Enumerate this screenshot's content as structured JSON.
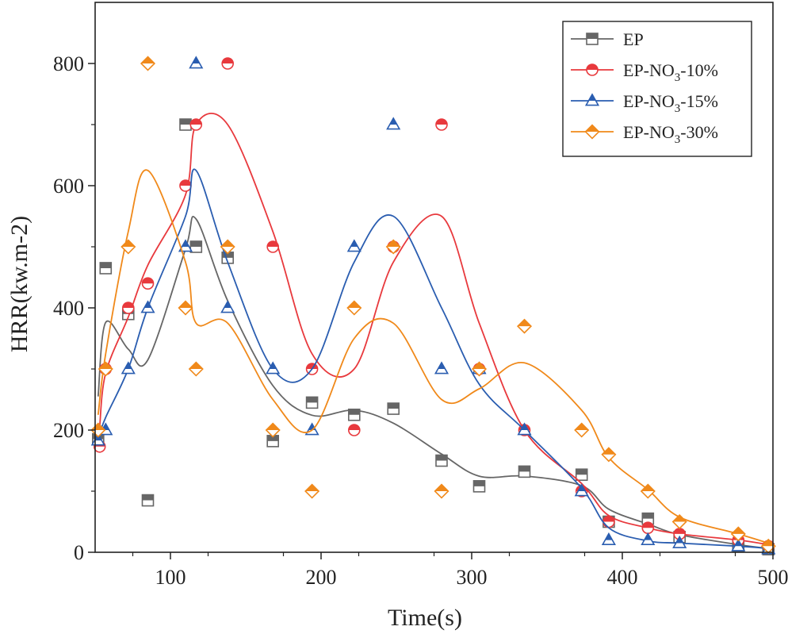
{
  "chart_data": {
    "type": "scatter",
    "title": "",
    "xlabel": "Time(s)",
    "ylabel": "HRR(kw.m-2)",
    "xlim": [
      50,
      500
    ],
    "ylim": [
      0,
      900
    ],
    "xticks": [
      100,
      200,
      300,
      400,
      500
    ],
    "yticks": [
      0,
      200,
      400,
      600,
      800
    ],
    "xtick_labels": [
      "100",
      "200",
      "300",
      "400",
      "500"
    ],
    "ytick_labels": [
      "0",
      "200",
      "400",
      "600",
      "800"
    ],
    "legend_position": "top-right",
    "series": [
      {
        "name": "EP",
        "label_prefix": "EP",
        "label_sub": "",
        "label_suffix": "",
        "color": "#666666",
        "marker": "square",
        "x": [
          52,
          57,
          72,
          85,
          110,
          117,
          138,
          168,
          194,
          222,
          248,
          280,
          305,
          335,
          373,
          391,
          417,
          438,
          477,
          497
        ],
        "y": [
          185,
          465,
          390,
          85,
          700,
          500,
          482,
          182,
          245,
          225,
          235,
          150,
          108,
          132,
          127,
          50,
          55,
          25,
          10,
          5
        ]
      },
      {
        "name": "EP-NO3-10%",
        "label_prefix": "EP-NO",
        "label_sub": "3",
        "label_suffix": "-10%",
        "color": "#e8393d",
        "marker": "circle",
        "x": [
          53,
          57,
          72,
          85,
          110,
          117,
          138,
          168,
          194,
          222,
          248,
          280,
          305,
          335,
          373,
          391,
          417,
          438,
          477,
          497
        ],
        "y": [
          173,
          300,
          400,
          440,
          600,
          700,
          800,
          500,
          300,
          200,
          500,
          700,
          300,
          200,
          100,
          50,
          40,
          30,
          20,
          10
        ]
      },
      {
        "name": "EP-NO3-15%",
        "label_prefix": "EP-NO",
        "label_sub": "3",
        "label_suffix": "-15%",
        "color": "#2a5db0",
        "marker": "triangle",
        "x": [
          52,
          57,
          72,
          85,
          110,
          117,
          138,
          168,
          194,
          222,
          248,
          280,
          305,
          335,
          373,
          391,
          417,
          438,
          477,
          497
        ],
        "y": [
          183,
          200,
          300,
          400,
          500,
          800,
          400,
          300,
          200,
          500,
          700,
          300,
          300,
          200,
          100,
          20,
          20,
          15,
          10,
          5
        ]
      },
      {
        "name": "EP-NO3-30%",
        "label_prefix": "EP-NO",
        "label_sub": "3",
        "label_suffix": "-30%",
        "color": "#f0891a",
        "marker": "diamond",
        "x": [
          52,
          57,
          72,
          85,
          110,
          117,
          138,
          168,
          194,
          222,
          248,
          280,
          305,
          335,
          373,
          391,
          417,
          438,
          477,
          497
        ],
        "y": [
          200,
          300,
          500,
          800,
          400,
          300,
          500,
          200,
          100,
          400,
          500,
          100,
          300,
          370,
          200,
          160,
          100,
          50,
          30,
          10
        ]
      }
    ]
  }
}
